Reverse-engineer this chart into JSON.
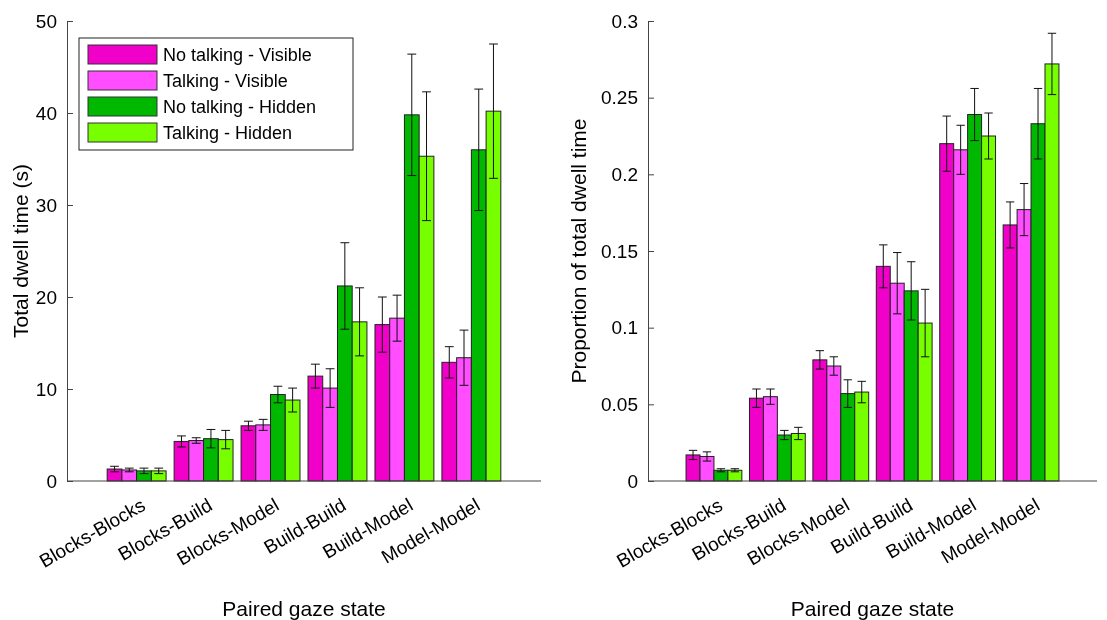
{
  "chart_data": [
    {
      "type": "bar",
      "categories": [
        "Blocks-Blocks",
        "Blocks-Build",
        "Blocks-Model",
        "Build-Build",
        "Build-Model",
        "Model-Model"
      ],
      "xlabel": "Paired gaze state",
      "ylabel": "Total dwell time (s)",
      "ylim": [
        0,
        50
      ],
      "yticks": [
        0,
        10,
        20,
        30,
        40,
        50
      ],
      "legend": "top left",
      "series": [
        {
          "name": "No talking - Visible",
          "color": "#f000c8",
          "values": [
            1.3,
            4.3,
            6.0,
            11.4,
            17.0,
            12.9
          ],
          "errors": [
            0.3,
            0.6,
            0.5,
            1.3,
            3.0,
            1.7
          ]
        },
        {
          "name": "Talking - Visible",
          "color": "#ff4dff",
          "values": [
            1.2,
            4.4,
            6.1,
            10.1,
            17.7,
            13.4
          ],
          "errors": [
            0.2,
            0.3,
            0.6,
            2.1,
            2.5,
            3.0
          ]
        },
        {
          "name": "No talking - Hidden",
          "color": "#00b800",
          "values": [
            1.1,
            4.6,
            9.4,
            21.2,
            39.8,
            36.0
          ],
          "errors": [
            0.3,
            1.0,
            0.9,
            4.7,
            6.6,
            6.6
          ]
        },
        {
          "name": "Talking - Hidden",
          "color": "#77ff00",
          "values": [
            1.1,
            4.5,
            8.8,
            17.3,
            35.3,
            40.2
          ],
          "errors": [
            0.3,
            1.0,
            1.3,
            3.7,
            7.0,
            7.3
          ]
        }
      ]
    },
    {
      "type": "bar",
      "categories": [
        "Blocks-Blocks",
        "Blocks-Build",
        "Blocks-Model",
        "Build-Build",
        "Build-Model",
        "Model-Model"
      ],
      "xlabel": "Paired gaze state",
      "ylabel": "Proportion of total dwell time",
      "ylim": [
        0,
        0.3
      ],
      "yticks": [
        0,
        0.05,
        0.1,
        0.15,
        0.2,
        0.25,
        0.3
      ],
      "series": [
        {
          "color": "#f000c8",
          "values": [
            0.017,
            0.054,
            0.079,
            0.14,
            0.22,
            0.167
          ],
          "errors": [
            0.003,
            0.006,
            0.006,
            0.014,
            0.018,
            0.015
          ]
        },
        {
          "color": "#ff4dff",
          "values": [
            0.016,
            0.055,
            0.075,
            0.129,
            0.216,
            0.177
          ],
          "errors": [
            0.003,
            0.005,
            0.006,
            0.02,
            0.016,
            0.017
          ]
        },
        {
          "color": "#00b800",
          "values": [
            0.007,
            0.03,
            0.057,
            0.124,
            0.239,
            0.233
          ],
          "errors": [
            0.001,
            0.003,
            0.009,
            0.019,
            0.017,
            0.023
          ]
        },
        {
          "color": "#77ff00",
          "values": [
            0.007,
            0.031,
            0.058,
            0.103,
            0.225,
            0.272
          ],
          "errors": [
            0.001,
            0.004,
            0.007,
            0.022,
            0.015,
            0.02
          ]
        }
      ]
    }
  ]
}
